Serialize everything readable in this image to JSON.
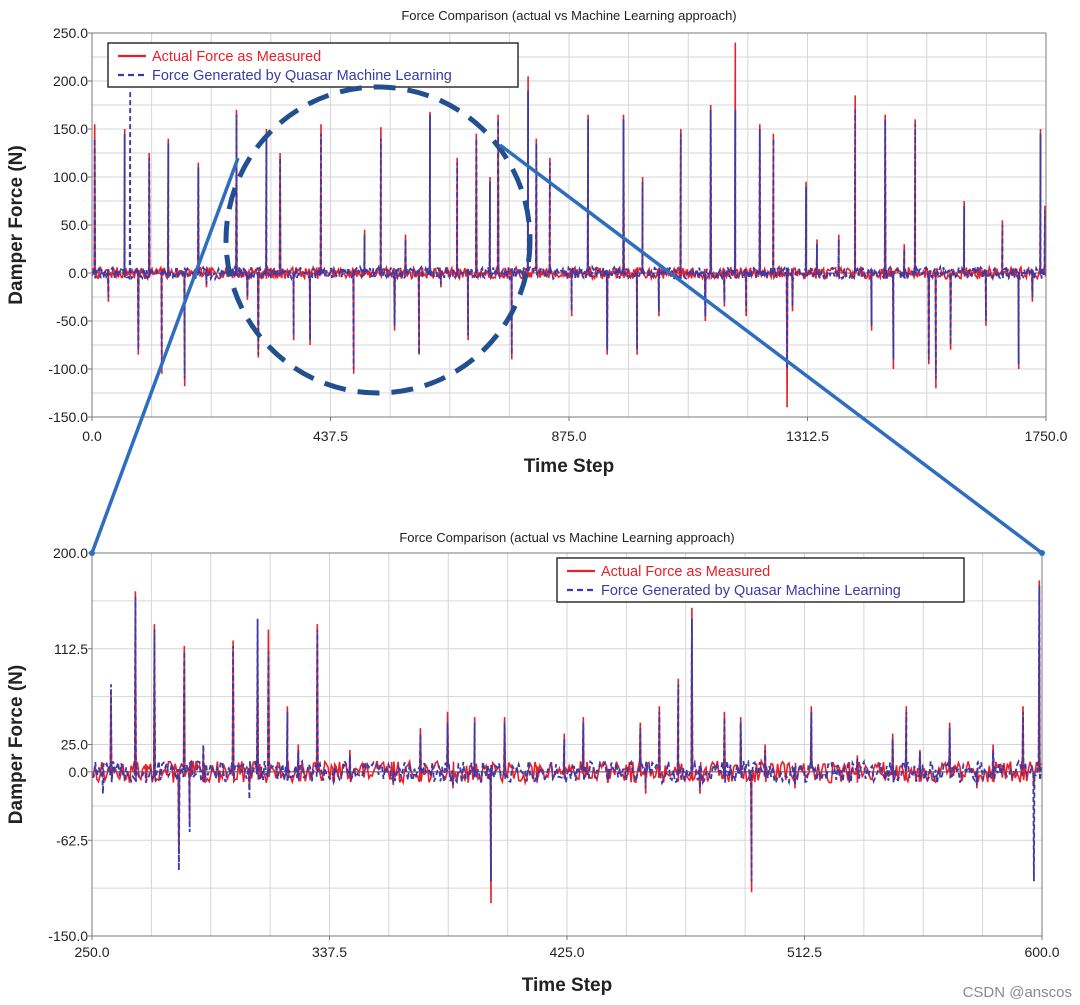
{
  "watermark": "CSDN @anscos",
  "colors": {
    "actual": "#e8202a",
    "ml": "#3a3aa8",
    "connector": "#2f6ebe",
    "circle": "#214f8f",
    "grid": "#d6d6d6",
    "axis": "#7a7a7a",
    "zero_line": "#555555"
  },
  "chart_data": [
    {
      "type": "line",
      "title": "Force Comparison (actual vs Machine Learning approach)",
      "xlabel": "Time Step",
      "ylabel": "Damper Force (N)",
      "xlim": [
        0,
        1750
      ],
      "ylim": [
        -150,
        250
      ],
      "x_ticks": [
        "0.0",
        "437.5",
        "875.0",
        "1312.5",
        "1750.0"
      ],
      "y_ticks": [
        "250.0",
        "200.0",
        "150.0",
        "100.0",
        "50.0",
        "0.0",
        "-50.0",
        "-100.0",
        "-150.0"
      ],
      "grid": true,
      "legend_position": "top-left",
      "zoom_circle": {
        "center": [
          520,
          25
        ],
        "radius_x": 260,
        "radius_y": 170
      },
      "series": [
        {
          "name": "Actual Force as Measured",
          "style": "solid",
          "spikes": [
            [
              5,
              155
            ],
            [
              30,
              -30
            ],
            [
              60,
              150
            ],
            [
              85,
              -85
            ],
            [
              105,
              125
            ],
            [
              128,
              -105
            ],
            [
              140,
              140
            ],
            [
              170,
              -118
            ],
            [
              195,
              115
            ],
            [
              210,
              -15
            ],
            [
              265,
              170
            ],
            [
              285,
              -28
            ],
            [
              305,
              -88
            ],
            [
              320,
              150
            ],
            [
              345,
              125
            ],
            [
              370,
              -70
            ],
            [
              400,
              -75
            ],
            [
              420,
              155
            ],
            [
              480,
              -105
            ],
            [
              500,
              45
            ],
            [
              530,
              152
            ],
            [
              555,
              -60
            ],
            [
              575,
              40
            ],
            [
              600,
              -85
            ],
            [
              620,
              168
            ],
            [
              640,
              -15
            ],
            [
              670,
              120
            ],
            [
              690,
              -70
            ],
            [
              705,
              145
            ],
            [
              730,
              100
            ],
            [
              745,
              165
            ],
            [
              770,
              -90
            ],
            [
              800,
              205
            ],
            [
              815,
              140
            ],
            [
              840,
              120
            ],
            [
              880,
              -45
            ],
            [
              910,
              165
            ],
            [
              945,
              -85
            ],
            [
              975,
              165
            ],
            [
              1000,
              -85
            ],
            [
              1010,
              100
            ],
            [
              1040,
              -45
            ],
            [
              1080,
              150
            ],
            [
              1125,
              -50
            ],
            [
              1135,
              175
            ],
            [
              1160,
              -35
            ],
            [
              1180,
              240
            ],
            [
              1200,
              -45
            ],
            [
              1225,
              155
            ],
            [
              1250,
              145
            ],
            [
              1275,
              -140
            ],
            [
              1285,
              -40
            ],
            [
              1310,
              95
            ],
            [
              1330,
              35
            ],
            [
              1370,
              40
            ],
            [
              1400,
              185
            ],
            [
              1430,
              -60
            ],
            [
              1455,
              165
            ],
            [
              1470,
              -100
            ],
            [
              1490,
              30
            ],
            [
              1510,
              160
            ],
            [
              1535,
              -95
            ],
            [
              1548,
              -120
            ],
            [
              1575,
              -80
            ],
            [
              1600,
              75
            ],
            [
              1640,
              -55
            ],
            [
              1670,
              55
            ],
            [
              1700,
              -100
            ],
            [
              1725,
              -30
            ],
            [
              1740,
              150
            ],
            [
              1748,
              70
            ]
          ]
        },
        {
          "name": "Force Generated by Quasar Machine Learning",
          "style": "dashed",
          "spikes": [
            [
              5,
              140
            ],
            [
              30,
              -25
            ],
            [
              60,
              145
            ],
            [
              70,
              190
            ],
            [
              85,
              -80
            ],
            [
              105,
              120
            ],
            [
              128,
              -95
            ],
            [
              140,
              135
            ],
            [
              170,
              -110
            ],
            [
              195,
              110
            ],
            [
              210,
              -12
            ],
            [
              265,
              165
            ],
            [
              285,
              -25
            ],
            [
              305,
              -85
            ],
            [
              320,
              145
            ],
            [
              345,
              120
            ],
            [
              370,
              -65
            ],
            [
              400,
              -70
            ],
            [
              420,
              145
            ],
            [
              480,
              -100
            ],
            [
              500,
              40
            ],
            [
              530,
              140
            ],
            [
              555,
              -55
            ],
            [
              575,
              35
            ],
            [
              600,
              -85
            ],
            [
              620,
              165
            ],
            [
              640,
              -12
            ],
            [
              670,
              115
            ],
            [
              690,
              -65
            ],
            [
              705,
              140
            ],
            [
              730,
              95
            ],
            [
              745,
              160
            ],
            [
              770,
              -85
            ],
            [
              800,
              190
            ],
            [
              815,
              135
            ],
            [
              840,
              115
            ],
            [
              880,
              -40
            ],
            [
              910,
              160
            ],
            [
              945,
              -80
            ],
            [
              975,
              160
            ],
            [
              1000,
              -80
            ],
            [
              1010,
              95
            ],
            [
              1040,
              -40
            ],
            [
              1080,
              145
            ],
            [
              1125,
              -45
            ],
            [
              1135,
              170
            ],
            [
              1160,
              -30
            ],
            [
              1180,
              170
            ],
            [
              1200,
              -40
            ],
            [
              1225,
              150
            ],
            [
              1250,
              140
            ],
            [
              1275,
              -100
            ],
            [
              1285,
              -35
            ],
            [
              1310,
              90
            ],
            [
              1330,
              30
            ],
            [
              1370,
              35
            ],
            [
              1400,
              170
            ],
            [
              1430,
              -55
            ],
            [
              1455,
              160
            ],
            [
              1470,
              -90
            ],
            [
              1490,
              25
            ],
            [
              1510,
              155
            ],
            [
              1535,
              -90
            ],
            [
              1548,
              -110
            ],
            [
              1575,
              -75
            ],
            [
              1600,
              70
            ],
            [
              1640,
              -50
            ],
            [
              1670,
              50
            ],
            [
              1700,
              -95
            ],
            [
              1725,
              -25
            ],
            [
              1740,
              145
            ],
            [
              1748,
              65
            ]
          ]
        }
      ]
    },
    {
      "type": "line",
      "title": "Force Comparison (actual vs Machine Learning approach)",
      "xlabel": "Time Step",
      "ylabel": "Damper Force (N)",
      "xlim": [
        250,
        600
      ],
      "ylim": [
        -150,
        200
      ],
      "x_ticks": [
        "250.0",
        "337.5",
        "425.0",
        "512.5",
        "600.0"
      ],
      "y_ticks": [
        "200.0",
        "112.5",
        "25.0",
        "0.0",
        "-62.5",
        "-150.0"
      ],
      "grid": true,
      "legend_position": "top-right",
      "series": [
        {
          "name": "Actual Force as Measured",
          "style": "solid",
          "spikes": [
            [
              257,
              70
            ],
            [
              266,
              165
            ],
            [
              270,
              -10
            ],
            [
              273,
              135
            ],
            [
              282,
              -75
            ],
            [
              284,
              115
            ],
            [
              286,
              -50
            ],
            [
              291,
              20
            ],
            [
              302,
              120
            ],
            [
              308,
              -15
            ],
            [
              311,
              120
            ],
            [
              315,
              130
            ],
            [
              322,
              60
            ],
            [
              326,
              25
            ],
            [
              333,
              135
            ],
            [
              339,
              -10
            ],
            [
              345,
              20
            ],
            [
              361,
              -12
            ],
            [
              371,
              40
            ],
            [
              381,
              55
            ],
            [
              383,
              -15
            ],
            [
              391,
              50
            ],
            [
              397,
              -120
            ],
            [
              402,
              50
            ],
            [
              414,
              -10
            ],
            [
              424,
              35
            ],
            [
              431,
              50
            ],
            [
              440,
              -10
            ],
            [
              452,
              45
            ],
            [
              454,
              -20
            ],
            [
              459,
              60
            ],
            [
              466,
              85
            ],
            [
              471,
              150
            ],
            [
              474,
              -20
            ],
            [
              483,
              55
            ],
            [
              489,
              50
            ],
            [
              493,
              -110
            ],
            [
              498,
              25
            ],
            [
              509,
              -15
            ],
            [
              515,
              60
            ],
            [
              529,
              -10
            ],
            [
              532,
              15
            ],
            [
              545,
              35
            ],
            [
              550,
              60
            ],
            [
              555,
              20
            ],
            [
              566,
              45
            ],
            [
              576,
              -15
            ],
            [
              582,
              25
            ],
            [
              593,
              60
            ],
            [
              597,
              -15
            ],
            [
              599,
              175
            ]
          ]
        },
        {
          "name": "Force Generated by Quasar Machine Learning",
          "style": "dashed",
          "spikes": [
            [
              254,
              -20
            ],
            [
              257,
              80
            ],
            [
              266,
              160
            ],
            [
              270,
              -8
            ],
            [
              273,
              130
            ],
            [
              282,
              -90
            ],
            [
              284,
              110
            ],
            [
              286,
              -55
            ],
            [
              291,
              25
            ],
            [
              302,
              115
            ],
            [
              308,
              -25
            ],
            [
              311,
              140
            ],
            [
              315,
              110
            ],
            [
              322,
              55
            ],
            [
              326,
              20
            ],
            [
              333,
              130
            ],
            [
              339,
              -8
            ],
            [
              345,
              15
            ],
            [
              361,
              -10
            ],
            [
              371,
              35
            ],
            [
              381,
              45
            ],
            [
              383,
              -12
            ],
            [
              391,
              45
            ],
            [
              397,
              -100
            ],
            [
              402,
              45
            ],
            [
              414,
              -8
            ],
            [
              424,
              30
            ],
            [
              431,
              45
            ],
            [
              440,
              -8
            ],
            [
              452,
              40
            ],
            [
              454,
              -15
            ],
            [
              459,
              55
            ],
            [
              466,
              80
            ],
            [
              471,
              140
            ],
            [
              474,
              -15
            ],
            [
              483,
              50
            ],
            [
              489,
              45
            ],
            [
              493,
              -100
            ],
            [
              498,
              20
            ],
            [
              509,
              -12
            ],
            [
              515,
              55
            ],
            [
              529,
              -8
            ],
            [
              532,
              12
            ],
            [
              545,
              30
            ],
            [
              550,
              55
            ],
            [
              555,
              18
            ],
            [
              566,
              40
            ],
            [
              576,
              -12
            ],
            [
              582,
              20
            ],
            [
              593,
              55
            ],
            [
              597,
              -100
            ],
            [
              599,
              170
            ]
          ]
        }
      ]
    }
  ]
}
